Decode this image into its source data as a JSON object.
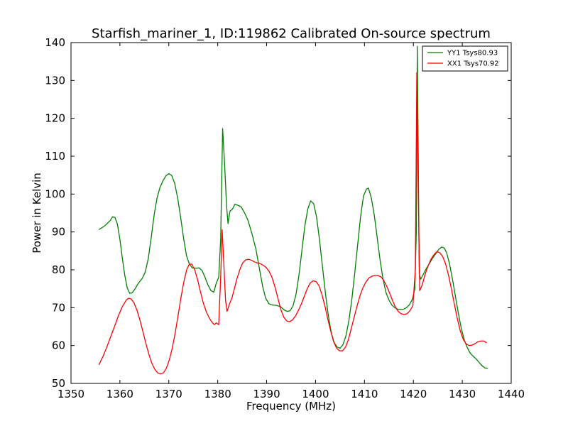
{
  "chart_data": {
    "type": "line",
    "title": "Starfish_mariner_1, ID:119862 Calibrated On-source spectrum",
    "xlabel": "Frequency (MHz)",
    "ylabel": "Power in Kelvin",
    "xlim": [
      1350,
      1440
    ],
    "ylim": [
      50,
      140
    ],
    "xticks": [
      "1350",
      "1360",
      "1370",
      "1380",
      "1390",
      "1400",
      "1410",
      "1420",
      "1430",
      "1440"
    ],
    "yticks": [
      "50",
      "60",
      "70",
      "80",
      "90",
      "100",
      "110",
      "120",
      "130",
      "140"
    ],
    "grid": false,
    "legend_position": "top-right",
    "series": [
      {
        "name": "YY1 Tsys80.93",
        "color": "#008000",
        "points": [
          [
            1355.7,
            90.6
          ],
          [
            1356.9,
            91.6
          ],
          [
            1358.0,
            93.0
          ],
          [
            1358.5,
            94.0
          ],
          [
            1359.0,
            93.8
          ],
          [
            1359.5,
            92.0
          ],
          [
            1360.0,
            88.0
          ],
          [
            1360.5,
            83.0
          ],
          [
            1361.0,
            78.5
          ],
          [
            1361.5,
            75.2
          ],
          [
            1362.0,
            73.8
          ],
          [
            1362.5,
            73.9
          ],
          [
            1363.0,
            74.8
          ],
          [
            1363.8,
            76.5
          ],
          [
            1364.6,
            77.8
          ],
          [
            1365.2,
            79.5
          ],
          [
            1365.8,
            83.0
          ],
          [
            1366.4,
            88.5
          ],
          [
            1367.0,
            94.5
          ],
          [
            1367.6,
            99.0
          ],
          [
            1368.2,
            101.8
          ],
          [
            1368.8,
            103.5
          ],
          [
            1369.4,
            104.8
          ],
          [
            1370.0,
            105.4
          ],
          [
            1370.6,
            104.9
          ],
          [
            1371.2,
            102.8
          ],
          [
            1371.8,
            99.0
          ],
          [
            1372.4,
            94.0
          ],
          [
            1373.0,
            88.5
          ],
          [
            1373.6,
            83.8
          ],
          [
            1374.2,
            81.5
          ],
          [
            1374.8,
            80.5
          ],
          [
            1375.5,
            80.4
          ],
          [
            1376.2,
            80.5
          ],
          [
            1376.8,
            79.8
          ],
          [
            1377.4,
            78.0
          ],
          [
            1378.0,
            76.0
          ],
          [
            1378.6,
            74.5
          ],
          [
            1379.2,
            74.1
          ],
          [
            1379.7,
            76.5
          ],
          [
            1380.2,
            78.0
          ],
          [
            1380.6,
            88.0
          ],
          [
            1381.0,
            117.3
          ],
          [
            1381.4,
            108.0
          ],
          [
            1381.8,
            97.0
          ],
          [
            1382.1,
            92.2
          ],
          [
            1382.5,
            95.5
          ],
          [
            1383.0,
            96.0
          ],
          [
            1383.5,
            97.3
          ],
          [
            1384.2,
            97.0
          ],
          [
            1384.8,
            96.6
          ],
          [
            1385.5,
            95.0
          ],
          [
            1386.2,
            93.0
          ],
          [
            1387.0,
            89.5
          ],
          [
            1387.8,
            85.5
          ],
          [
            1388.5,
            80.5
          ],
          [
            1389.2,
            75.5
          ],
          [
            1389.8,
            72.5
          ],
          [
            1390.5,
            71.0
          ],
          [
            1391.2,
            70.7
          ],
          [
            1392.0,
            70.6
          ],
          [
            1392.8,
            70.3
          ],
          [
            1393.5,
            69.5
          ],
          [
            1394.2,
            69.0
          ],
          [
            1394.8,
            69.2
          ],
          [
            1395.4,
            70.5
          ],
          [
            1396.0,
            73.5
          ],
          [
            1396.6,
            78.5
          ],
          [
            1397.2,
            85.0
          ],
          [
            1397.8,
            91.5
          ],
          [
            1398.4,
            96.0
          ],
          [
            1399.0,
            98.2
          ],
          [
            1399.6,
            97.5
          ],
          [
            1400.2,
            94.0
          ],
          [
            1400.8,
            88.0
          ],
          [
            1401.4,
            81.0
          ],
          [
            1402.0,
            74.0
          ],
          [
            1402.6,
            68.0
          ],
          [
            1403.2,
            63.5
          ],
          [
            1403.8,
            60.8
          ],
          [
            1404.4,
            59.6
          ],
          [
            1405.0,
            59.3
          ],
          [
            1405.6,
            60.2
          ],
          [
            1406.2,
            62.5
          ],
          [
            1406.8,
            66.5
          ],
          [
            1407.4,
            72.0
          ],
          [
            1408.0,
            79.0
          ],
          [
            1408.6,
            86.5
          ],
          [
            1409.2,
            94.0
          ],
          [
            1409.8,
            99.5
          ],
          [
            1410.4,
            101.3
          ],
          [
            1410.8,
            101.6
          ],
          [
            1411.4,
            99.0
          ],
          [
            1412.0,
            94.5
          ],
          [
            1412.6,
            88.5
          ],
          [
            1413.2,
            82.5
          ],
          [
            1413.8,
            77.5
          ],
          [
            1414.4,
            74.0
          ],
          [
            1415.0,
            72.0
          ],
          [
            1415.6,
            70.7
          ],
          [
            1416.2,
            70.0
          ],
          [
            1416.8,
            69.6
          ],
          [
            1417.4,
            69.5
          ],
          [
            1418.0,
            69.6
          ],
          [
            1418.6,
            70.0
          ],
          [
            1419.2,
            70.8
          ],
          [
            1419.8,
            72.2
          ],
          [
            1420.3,
            75.0
          ],
          [
            1420.6,
            90.0
          ],
          [
            1420.8,
            139.0
          ],
          [
            1421.0,
            110.0
          ],
          [
            1421.2,
            79.0
          ],
          [
            1421.5,
            77.5
          ],
          [
            1421.9,
            78.5
          ],
          [
            1422.5,
            80.0
          ],
          [
            1423.2,
            81.5
          ],
          [
            1423.9,
            83.0
          ],
          [
            1424.6,
            84.3
          ],
          [
            1425.2,
            85.4
          ],
          [
            1425.8,
            86.0
          ],
          [
            1426.3,
            85.8
          ],
          [
            1426.8,
            84.5
          ],
          [
            1427.4,
            81.5
          ],
          [
            1428.0,
            77.5
          ],
          [
            1428.6,
            73.0
          ],
          [
            1429.2,
            68.5
          ],
          [
            1429.8,
            64.5
          ],
          [
            1430.4,
            61.5
          ],
          [
            1431.0,
            59.5
          ],
          [
            1431.6,
            58.0
          ],
          [
            1432.2,
            57.2
          ],
          [
            1432.8,
            56.5
          ],
          [
            1433.4,
            55.6
          ],
          [
            1434.0,
            54.7
          ],
          [
            1434.6,
            54.1
          ],
          [
            1435.2,
            54.0
          ]
        ]
      },
      {
        "name": "XX1 Tsys70.92",
        "color": "#ff0000",
        "points": [
          [
            1355.7,
            54.9
          ],
          [
            1356.5,
            57.0
          ],
          [
            1357.3,
            59.5
          ],
          [
            1358.1,
            62.3
          ],
          [
            1358.9,
            65.0
          ],
          [
            1359.7,
            67.9
          ],
          [
            1360.5,
            70.3
          ],
          [
            1361.3,
            72.0
          ],
          [
            1361.8,
            72.5
          ],
          [
            1362.3,
            72.3
          ],
          [
            1362.9,
            71.2
          ],
          [
            1363.5,
            69.3
          ],
          [
            1364.1,
            66.7
          ],
          [
            1364.7,
            63.7
          ],
          [
            1365.3,
            60.6
          ],
          [
            1365.9,
            57.8
          ],
          [
            1366.5,
            55.4
          ],
          [
            1367.1,
            53.8
          ],
          [
            1367.7,
            52.8
          ],
          [
            1368.3,
            52.5
          ],
          [
            1368.9,
            52.8
          ],
          [
            1369.5,
            54.0
          ],
          [
            1370.1,
            56.2
          ],
          [
            1370.7,
            59.3
          ],
          [
            1371.3,
            63.3
          ],
          [
            1371.9,
            68.0
          ],
          [
            1372.5,
            72.8
          ],
          [
            1373.1,
            77.0
          ],
          [
            1373.7,
            80.2
          ],
          [
            1374.2,
            81.5
          ],
          [
            1374.7,
            81.5
          ],
          [
            1375.3,
            80.0
          ],
          [
            1375.9,
            77.3
          ],
          [
            1376.5,
            74.0
          ],
          [
            1377.1,
            71.0
          ],
          [
            1377.7,
            68.8
          ],
          [
            1378.3,
            67.2
          ],
          [
            1378.8,
            66.2
          ],
          [
            1379.3,
            65.5
          ],
          [
            1379.7,
            66.0
          ],
          [
            1380.2,
            65.5
          ],
          [
            1380.6,
            78.0
          ],
          [
            1380.9,
            90.6
          ],
          [
            1381.3,
            80.0
          ],
          [
            1381.6,
            72.0
          ],
          [
            1381.9,
            69.0
          ],
          [
            1382.4,
            71.0
          ],
          [
            1382.9,
            72.5
          ],
          [
            1383.4,
            75.0
          ],
          [
            1383.9,
            77.5
          ],
          [
            1384.5,
            80.0
          ],
          [
            1385.1,
            81.8
          ],
          [
            1385.7,
            82.6
          ],
          [
            1386.3,
            82.8
          ],
          [
            1386.9,
            82.5
          ],
          [
            1387.5,
            82.1
          ],
          [
            1388.1,
            81.8
          ],
          [
            1388.7,
            81.6
          ],
          [
            1389.3,
            81.2
          ],
          [
            1389.9,
            80.6
          ],
          [
            1390.5,
            79.6
          ],
          [
            1391.1,
            78.0
          ],
          [
            1391.7,
            75.5
          ],
          [
            1392.3,
            72.5
          ],
          [
            1392.9,
            69.5
          ],
          [
            1393.5,
            67.5
          ],
          [
            1394.1,
            66.5
          ],
          [
            1394.7,
            66.3
          ],
          [
            1395.3,
            66.8
          ],
          [
            1395.9,
            67.8
          ],
          [
            1396.5,
            69.3
          ],
          [
            1397.1,
            71.0
          ],
          [
            1397.7,
            73.0
          ],
          [
            1398.3,
            75.0
          ],
          [
            1398.9,
            76.5
          ],
          [
            1399.5,
            77.1
          ],
          [
            1400.1,
            76.9
          ],
          [
            1400.7,
            75.8
          ],
          [
            1401.3,
            73.5
          ],
          [
            1401.9,
            70.5
          ],
          [
            1402.5,
            67.0
          ],
          [
            1403.1,
            63.8
          ],
          [
            1403.7,
            61.0
          ],
          [
            1404.3,
            59.3
          ],
          [
            1404.9,
            58.6
          ],
          [
            1405.5,
            58.6
          ],
          [
            1406.1,
            59.5
          ],
          [
            1406.7,
            61.5
          ],
          [
            1407.3,
            64.5
          ],
          [
            1407.9,
            67.5
          ],
          [
            1408.5,
            70.5
          ],
          [
            1409.1,
            73.2
          ],
          [
            1409.7,
            75.3
          ],
          [
            1410.3,
            76.8
          ],
          [
            1410.9,
            77.8
          ],
          [
            1411.5,
            78.3
          ],
          [
            1412.1,
            78.5
          ],
          [
            1412.7,
            78.5
          ],
          [
            1413.3,
            78.2
          ],
          [
            1413.9,
            77.3
          ],
          [
            1414.5,
            75.8
          ],
          [
            1415.1,
            74.0
          ],
          [
            1415.7,
            72.0
          ],
          [
            1416.3,
            70.2
          ],
          [
            1416.9,
            69.0
          ],
          [
            1417.5,
            68.4
          ],
          [
            1418.1,
            68.2
          ],
          [
            1418.7,
            68.4
          ],
          [
            1419.3,
            69.2
          ],
          [
            1419.9,
            70.5
          ],
          [
            1420.4,
            80.0
          ],
          [
            1420.7,
            132.0
          ],
          [
            1421.0,
            100.0
          ],
          [
            1421.3,
            74.5
          ],
          [
            1421.8,
            76.0
          ],
          [
            1422.4,
            78.8
          ],
          [
            1423.0,
            81.0
          ],
          [
            1423.6,
            82.8
          ],
          [
            1424.2,
            84.0
          ],
          [
            1424.8,
            84.8
          ],
          [
            1425.4,
            84.5
          ],
          [
            1426.0,
            83.5
          ],
          [
            1426.6,
            81.5
          ],
          [
            1427.2,
            78.5
          ],
          [
            1427.8,
            74.8
          ],
          [
            1428.4,
            70.8
          ],
          [
            1429.0,
            67.0
          ],
          [
            1429.6,
            63.8
          ],
          [
            1430.2,
            61.6
          ],
          [
            1430.8,
            60.4
          ],
          [
            1431.4,
            60.0
          ],
          [
            1432.0,
            60.1
          ],
          [
            1432.6,
            60.5
          ],
          [
            1433.2,
            61.0
          ],
          [
            1433.8,
            61.2
          ],
          [
            1434.4,
            61.2
          ],
          [
            1435.0,
            60.7
          ]
        ]
      }
    ]
  }
}
